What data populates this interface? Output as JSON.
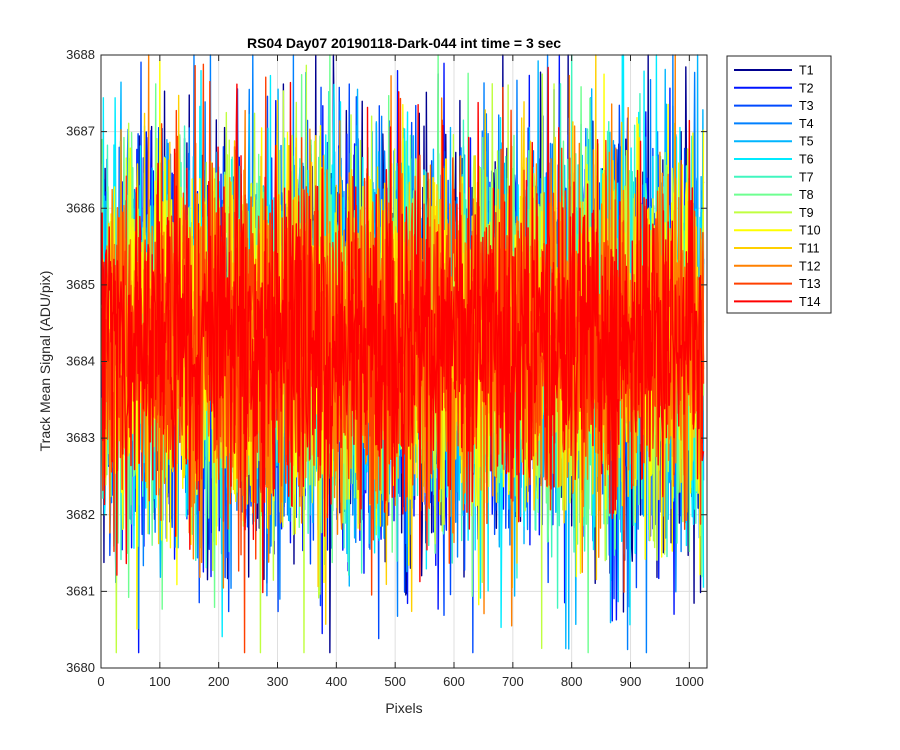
{
  "chart_data": {
    "type": "line",
    "title": "RS04 Day07 20190118-Dark-044 int time = 3 sec",
    "xlabel": "Pixels",
    "ylabel": "Track Mean Signal (ADU/pix)",
    "xlim": [
      0,
      1030
    ],
    "ylim": [
      3680,
      3688
    ],
    "xticks": [
      "0",
      "100",
      "200",
      "300",
      "400",
      "500",
      "600",
      "700",
      "800",
      "900",
      "1000"
    ],
    "yticks": [
      "3680",
      "3681",
      "3682",
      "3683",
      "3684",
      "3685",
      "3686",
      "3687",
      "3688"
    ],
    "grid": true,
    "legend_position": "outside-top-right",
    "n_pixels": 1024,
    "series_stats": {
      "mean": 3684.3,
      "std": 1.2,
      "min": 3680.2,
      "max": 3688.0
    },
    "series": [
      {
        "name": "T1",
        "color": "#00008f"
      },
      {
        "name": "T2",
        "color": "#0014ff"
      },
      {
        "name": "T3",
        "color": "#004aff"
      },
      {
        "name": "T4",
        "color": "#0080ff"
      },
      {
        "name": "T5",
        "color": "#00b5ff"
      },
      {
        "name": "T6",
        "color": "#00ebff"
      },
      {
        "name": "T7",
        "color": "#40f6bf"
      },
      {
        "name": "T8",
        "color": "#6eff90"
      },
      {
        "name": "T9",
        "color": "#c0ff40"
      },
      {
        "name": "T10",
        "color": "#ffff00"
      },
      {
        "name": "T11",
        "color": "#ffd000"
      },
      {
        "name": "T12",
        "color": "#ff8000"
      },
      {
        "name": "T13",
        "color": "#ff4000"
      },
      {
        "name": "T14",
        "color": "#ff0000"
      }
    ]
  }
}
